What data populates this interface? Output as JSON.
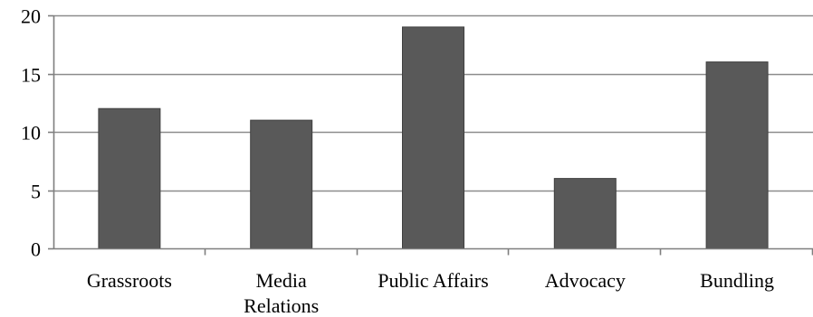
{
  "chart_data": {
    "type": "bar",
    "categories": [
      "Grassroots",
      "Media Relations",
      "Public Affairs",
      "Advocacy",
      "Bundling"
    ],
    "category_label_lines": [
      [
        "Grassroots"
      ],
      [
        "Media",
        "Relations"
      ],
      [
        "Public Affairs"
      ],
      [
        "Advocacy"
      ],
      [
        "Bundling"
      ]
    ],
    "values": [
      12,
      11,
      19,
      6,
      16
    ],
    "ylim": [
      0,
      20
    ],
    "yticks": [
      0,
      5,
      10,
      15,
      20
    ],
    "ytick_labels": [
      "0",
      "5",
      "10",
      "15",
      "20"
    ],
    "grid": true,
    "legend": "none"
  },
  "colors": {
    "bar": "#595959",
    "bar_edge": "#404040",
    "grid": "#8c8c8c",
    "axis": "#7f7f7f"
  }
}
